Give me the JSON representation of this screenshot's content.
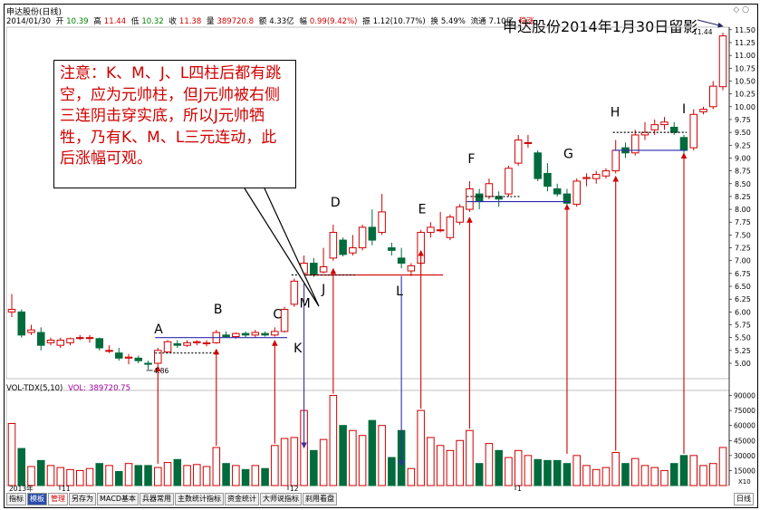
{
  "window": {
    "title": "申达股份(日线)",
    "controls": "◇ ○"
  },
  "quote_line": {
    "date": "2014/01/30",
    "open_label": "开",
    "open": "10.39",
    "high_label": "高",
    "high": "11.44",
    "low_label": "低",
    "low": "10.32",
    "close_label": "收",
    "close": "11.38",
    "volume_label": "量",
    "volume": "389720.8",
    "amount_label": "额",
    "amount": "4.33亿",
    "change_label": "幅",
    "change": "0.99(9.42%)",
    "ratio_label": "振",
    "ratio": "1.12(10.77%)",
    "turnover_label": "换",
    "turnover": "5.49%",
    "float_label": "流通",
    "float": "7.10亿",
    "extra": "稳涨"
  },
  "headline": "申达股份2014年1月30日留影",
  "annotation_note": "注意：K、M、J、L四柱后都有跳空，应为元帅柱，但J元帅被右侧三连阴击穿实底，所以J元帅牺牲，乃有K、M、L三元连动，此后涨幅可观。",
  "volume_indicator": {
    "name": "VOL-TDX(5,10)",
    "label": "VOL:",
    "value": "389720.75"
  },
  "colors": {
    "up": "#d00000",
    "down": "#006b3c",
    "flat": "#333333",
    "level_line": "#2a2ab0",
    "arrow_red": "#d00000",
    "arrow_blue": "#3030a0"
  },
  "tabs": [
    "指标",
    "模板",
    "管理",
    "另存为",
    "MACD基本",
    "兵器常用",
    "主数统计指标",
    "资金统计",
    "大师说指标",
    "刹用看盘"
  ],
  "tab_right": "日线",
  "date_axis": {
    "year_label": "2013年",
    "marks": [
      "11",
      "12",
      "1"
    ]
  },
  "chart_data": [
    {
      "type": "candlestick",
      "title": "申达股份(日线)",
      "ylim": [
        4.7,
        11.55
      ],
      "y_ticks": [
        "11.50",
        "11.25",
        "11.00",
        "10.75",
        "10.50",
        "10.25",
        "10.00",
        "9.75",
        "9.50",
        "9.25",
        "9.00",
        "8.75",
        "8.50",
        "8.25",
        "8.00",
        "7.75",
        "7.50",
        "7.25",
        "7.00",
        "6.75",
        "6.50",
        "6.25",
        "6.00",
        "5.75",
        "5.50",
        "5.25",
        "5.00"
      ],
      "candles": [
        {
          "o": 6.0,
          "h": 6.35,
          "l": 5.9,
          "c": 6.05
        },
        {
          "o": 6.0,
          "h": 6.05,
          "l": 5.5,
          "c": 5.55
        },
        {
          "o": 5.6,
          "h": 5.75,
          "l": 5.55,
          "c": 5.65
        },
        {
          "o": 5.6,
          "h": 5.7,
          "l": 5.25,
          "c": 5.35
        },
        {
          "o": 5.4,
          "h": 5.5,
          "l": 5.35,
          "c": 5.45
        },
        {
          "o": 5.35,
          "h": 5.5,
          "l": 5.3,
          "c": 5.45
        },
        {
          "o": 5.4,
          "h": 5.5,
          "l": 5.35,
          "c": 5.48
        },
        {
          "o": 5.5,
          "h": 5.55,
          "l": 5.45,
          "c": 5.5
        },
        {
          "o": 5.5,
          "h": 5.55,
          "l": 5.4,
          "c": 5.5
        },
        {
          "o": 5.48,
          "h": 5.5,
          "l": 5.25,
          "c": 5.3
        },
        {
          "o": 5.25,
          "h": 5.35,
          "l": 5.2,
          "c": 5.25
        },
        {
          "o": 5.2,
          "h": 5.3,
          "l": 5.05,
          "c": 5.1
        },
        {
          "o": 5.1,
          "h": 5.18,
          "l": 4.98,
          "c": 5.12
        },
        {
          "o": 5.1,
          "h": 5.15,
          "l": 5.0,
          "c": 5.05
        },
        {
          "o": 5.0,
          "h": 5.05,
          "l": 4.88,
          "c": 4.98
        },
        {
          "o": 5.0,
          "h": 5.3,
          "l": 4.95,
          "c": 5.25
        },
        {
          "o": 5.22,
          "h": 5.45,
          "l": 5.2,
          "c": 5.42
        },
        {
          "o": 5.38,
          "h": 5.45,
          "l": 5.3,
          "c": 5.35
        },
        {
          "o": 5.35,
          "h": 5.45,
          "l": 5.32,
          "c": 5.4
        },
        {
          "o": 5.4,
          "h": 5.45,
          "l": 5.35,
          "c": 5.42
        },
        {
          "o": 5.38,
          "h": 5.45,
          "l": 5.33,
          "c": 5.4
        },
        {
          "o": 5.4,
          "h": 5.65,
          "l": 5.38,
          "c": 5.6
        },
        {
          "o": 5.55,
          "h": 5.62,
          "l": 5.5,
          "c": 5.52
        },
        {
          "o": 5.52,
          "h": 5.6,
          "l": 5.48,
          "c": 5.58
        },
        {
          "o": 5.58,
          "h": 5.62,
          "l": 5.5,
          "c": 5.55
        },
        {
          "o": 5.55,
          "h": 5.65,
          "l": 5.5,
          "c": 5.6
        },
        {
          "o": 5.58,
          "h": 5.62,
          "l": 5.52,
          "c": 5.55
        },
        {
          "o": 5.55,
          "h": 5.7,
          "l": 5.52,
          "c": 5.62
        },
        {
          "o": 5.62,
          "h": 6.1,
          "l": 5.6,
          "c": 6.05
        },
        {
          "o": 6.15,
          "h": 6.65,
          "l": 6.1,
          "c": 6.6
        },
        {
          "o": 6.75,
          "h": 7.1,
          "l": 6.72,
          "c": 6.95
        },
        {
          "o": 6.95,
          "h": 7.05,
          "l": 6.68,
          "c": 6.72
        },
        {
          "o": 6.78,
          "h": 7.25,
          "l": 6.75,
          "c": 6.88
        },
        {
          "o": 7.05,
          "h": 7.7,
          "l": 7.0,
          "c": 7.55
        },
        {
          "o": 7.4,
          "h": 7.45,
          "l": 7.08,
          "c": 7.12
        },
        {
          "o": 7.15,
          "h": 7.5,
          "l": 7.1,
          "c": 7.25
        },
        {
          "o": 7.25,
          "h": 7.7,
          "l": 7.2,
          "c": 7.65
        },
        {
          "o": 7.65,
          "h": 8.0,
          "l": 7.3,
          "c": 7.4
        },
        {
          "o": 7.55,
          "h": 8.3,
          "l": 7.5,
          "c": 7.95
        },
        {
          "o": 7.25,
          "h": 7.35,
          "l": 7.1,
          "c": 7.2
        },
        {
          "o": 7.05,
          "h": 7.25,
          "l": 6.85,
          "c": 6.95
        },
        {
          "o": 6.8,
          "h": 6.95,
          "l": 6.7,
          "c": 6.9
        },
        {
          "o": 6.95,
          "h": 7.6,
          "l": 6.9,
          "c": 7.55
        },
        {
          "o": 7.55,
          "h": 7.75,
          "l": 7.45,
          "c": 7.65
        },
        {
          "o": 7.6,
          "h": 7.95,
          "l": 7.55,
          "c": 7.6
        },
        {
          "o": 7.45,
          "h": 7.9,
          "l": 7.4,
          "c": 7.85
        },
        {
          "o": 7.75,
          "h": 8.1,
          "l": 7.7,
          "c": 8.05
        },
        {
          "o": 8.0,
          "h": 8.55,
          "l": 7.95,
          "c": 8.4
        },
        {
          "o": 8.3,
          "h": 8.4,
          "l": 8.0,
          "c": 8.15
        },
        {
          "o": 8.25,
          "h": 8.6,
          "l": 8.2,
          "c": 8.5
        },
        {
          "o": 8.25,
          "h": 8.35,
          "l": 8.05,
          "c": 8.2
        },
        {
          "o": 8.3,
          "h": 8.85,
          "l": 8.25,
          "c": 8.8
        },
        {
          "o": 8.9,
          "h": 9.45,
          "l": 8.85,
          "c": 9.35
        },
        {
          "o": 9.3,
          "h": 9.45,
          "l": 9.2,
          "c": 9.3
        },
        {
          "o": 9.1,
          "h": 9.15,
          "l": 8.55,
          "c": 8.6
        },
        {
          "o": 8.7,
          "h": 8.9,
          "l": 8.35,
          "c": 8.45
        },
        {
          "o": 8.4,
          "h": 8.5,
          "l": 8.25,
          "c": 8.3
        },
        {
          "o": 8.3,
          "h": 8.4,
          "l": 8.08,
          "c": 8.12
        },
        {
          "o": 8.1,
          "h": 8.6,
          "l": 8.05,
          "c": 8.55
        },
        {
          "o": 8.6,
          "h": 8.7,
          "l": 8.45,
          "c": 8.62
        },
        {
          "o": 8.6,
          "h": 8.75,
          "l": 8.5,
          "c": 8.68
        },
        {
          "o": 8.65,
          "h": 8.8,
          "l": 8.6,
          "c": 8.75
        },
        {
          "o": 8.75,
          "h": 9.35,
          "l": 8.7,
          "c": 9.15
        },
        {
          "o": 9.2,
          "h": 9.3,
          "l": 9.0,
          "c": 9.1
        },
        {
          "o": 9.1,
          "h": 9.55,
          "l": 9.05,
          "c": 9.45
        },
        {
          "o": 9.45,
          "h": 9.7,
          "l": 9.35,
          "c": 9.5
        },
        {
          "o": 9.55,
          "h": 9.75,
          "l": 9.45,
          "c": 9.65
        },
        {
          "o": 9.65,
          "h": 9.8,
          "l": 9.55,
          "c": 9.7
        },
        {
          "o": 9.6,
          "h": 9.7,
          "l": 9.45,
          "c": 9.5
        },
        {
          "o": 9.4,
          "h": 9.45,
          "l": 9.1,
          "c": 9.15
        },
        {
          "o": 9.2,
          "h": 9.95,
          "l": 9.15,
          "c": 9.85
        },
        {
          "o": 9.9,
          "h": 10.0,
          "l": 9.85,
          "c": 9.95
        },
        {
          "o": 10.0,
          "h": 10.5,
          "l": 9.95,
          "c": 10.4
        },
        {
          "o": 10.39,
          "h": 11.44,
          "l": 10.32,
          "c": 11.38
        }
      ],
      "volumes": [
        62000,
        37000,
        19000,
        25000,
        20000,
        18000,
        16000,
        15000,
        17000,
        22000,
        20000,
        14000,
        22000,
        20000,
        20000,
        18000,
        23000,
        26000,
        20000,
        21000,
        19000,
        38000,
        22000,
        20000,
        16000,
        20000,
        17000,
        40000,
        47000,
        48000,
        75000,
        35000,
        46000,
        90000,
        60000,
        55000,
        50000,
        65000,
        60000,
        28000,
        55000,
        17000,
        75000,
        48000,
        40000,
        35000,
        45000,
        55000,
        22000,
        42000,
        35000,
        28000,
        35000,
        30000,
        26000,
        25000,
        25000,
        22000,
        30000,
        20000,
        16000,
        18000,
        33000,
        22000,
        27000,
        20000,
        18000,
        15000,
        22000,
        30000,
        30000,
        20000,
        22000,
        38000
      ],
      "vol_ticks": [
        "90000",
        "75000",
        "60000",
        "45000",
        "30000",
        "15000"
      ],
      "vol_unit": "X10",
      "low_marker": "4.86",
      "high_marker": "11.44",
      "point_labels": [
        {
          "text": "A",
          "i": 15
        },
        {
          "text": "B",
          "i": 21
        },
        {
          "text": "C",
          "i": 27
        },
        {
          "text": "K",
          "i": 28
        },
        {
          "text": "M",
          "i": 30
        },
        {
          "text": "J",
          "i": 32
        },
        {
          "text": "D",
          "i": 33
        },
        {
          "text": "L",
          "i": 40
        },
        {
          "text": "E",
          "i": 42
        },
        {
          "text": "F",
          "i": 47
        },
        {
          "text": "G",
          "i": 57
        },
        {
          "text": "H",
          "i": 62
        },
        {
          "text": "I",
          "i": 69
        }
      ]
    }
  ]
}
